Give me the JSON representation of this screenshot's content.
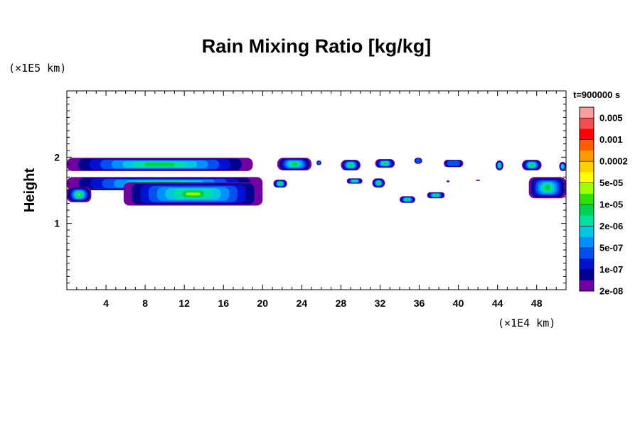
{
  "chart_data": {
    "type": "heatmap",
    "title": "Rain Mixing Ratio [kg/kg]",
    "ylabel": "Height",
    "xlabel": "",
    "y_unit": "(×1E5 km)",
    "x_unit": "(×1E4 km)",
    "time_label": "t=900000 s",
    "xlim": [
      0,
      51
    ],
    "ylim": [
      0,
      3
    ],
    "x_ticks": [
      4,
      8,
      12,
      16,
      20,
      24,
      28,
      32,
      36,
      40,
      44,
      48
    ],
    "y_ticks": [
      1,
      2
    ],
    "grid": false,
    "colorbar": {
      "labels": [
        "0.005",
        "0.001",
        "0.0002",
        "5e-05",
        "1e-05",
        "2e-06",
        "5e-07",
        "1e-07",
        "2e-08"
      ],
      "colors": [
        "#f8a0a0",
        "#f05050",
        "#ff0000",
        "#ff5a00",
        "#ff9a00",
        "#ffd000",
        "#ffff00",
        "#a0ff00",
        "#30e000",
        "#00d050",
        "#00e0a0",
        "#00c8e0",
        "#0090ff",
        "#0050f0",
        "#0010d0",
        "#000090",
        "#7000a0"
      ]
    },
    "features": [
      {
        "x": [
          0,
          19
        ],
        "y": [
          1.79,
          1.99
        ],
        "peak": "2e-06"
      },
      {
        "x": [
          21.5,
          25
        ],
        "y": [
          1.8,
          1.99
        ],
        "peak": "2e-06"
      },
      {
        "x": [
          25.5,
          26
        ],
        "y": [
          1.88,
          1.95
        ],
        "peak": "1e-07"
      },
      {
        "x": [
          28,
          30
        ],
        "y": [
          1.8,
          1.96
        ],
        "peak": "2e-06"
      },
      {
        "x": [
          31.5,
          33.5
        ],
        "y": [
          1.84,
          1.97
        ],
        "peak": "2e-06"
      },
      {
        "x": [
          35.5,
          36.3
        ],
        "y": [
          1.9,
          1.99
        ],
        "peak": "1e-07"
      },
      {
        "x": [
          38.5,
          40.5
        ],
        "y": [
          1.85,
          1.96
        ],
        "peak": "1e-07"
      },
      {
        "x": [
          43.8,
          44.6
        ],
        "y": [
          1.8,
          1.95
        ],
        "peak": "2e-06"
      },
      {
        "x": [
          46.5,
          48.5
        ],
        "y": [
          1.8,
          1.96
        ],
        "peak": "2e-06"
      },
      {
        "x": [
          50.3,
          51
        ],
        "y": [
          1.79,
          1.93
        ],
        "peak": "5e-07"
      },
      {
        "x": [
          0,
          20
        ],
        "y": [
          1.5,
          1.7
        ],
        "peak": "2e-06"
      },
      {
        "x": [
          0,
          2.5
        ],
        "y": [
          1.32,
          1.55
        ],
        "peak": "1e-05"
      },
      {
        "x": [
          5.8,
          20
        ],
        "y": [
          1.27,
          1.62
        ],
        "peak": "1e-05"
      },
      {
        "x": [
          21.1,
          22.5
        ],
        "y": [
          1.54,
          1.66
        ],
        "peak": "2e-06"
      },
      {
        "x": [
          28.6,
          30.2
        ],
        "y": [
          1.6,
          1.68
        ],
        "peak": "5e-07"
      },
      {
        "x": [
          31.2,
          32.5
        ],
        "y": [
          1.54,
          1.68
        ],
        "peak": "2e-06"
      },
      {
        "x": [
          34,
          35.6
        ],
        "y": [
          1.31,
          1.41
        ],
        "peak": "2e-06"
      },
      {
        "x": [
          36.8,
          38.6
        ],
        "y": [
          1.38,
          1.47
        ],
        "peak": "2e-06"
      },
      {
        "x": [
          38.8,
          39.1
        ],
        "y": [
          1.62,
          1.65
        ],
        "peak": "2e-08"
      },
      {
        "x": [
          41.8,
          42.2
        ],
        "y": [
          1.64,
          1.66
        ],
        "peak": "2e-08"
      },
      {
        "x": [
          47.2,
          51
        ],
        "y": [
          1.38,
          1.7
        ],
        "peak": "2e-06"
      }
    ]
  }
}
